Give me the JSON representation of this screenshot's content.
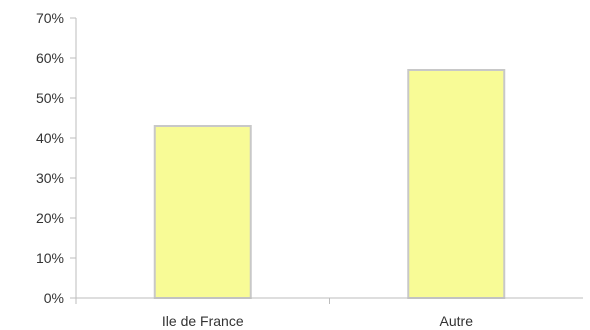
{
  "chart_data": {
    "type": "bar",
    "categories": [
      "Ile de France",
      "Autre"
    ],
    "values": [
      43,
      57
    ],
    "value_unit": "%",
    "ylim": [
      0,
      70
    ],
    "yticks": [
      0,
      10,
      20,
      30,
      40,
      50,
      60,
      70
    ],
    "ytick_labels": [
      "0%",
      "10%",
      "20%",
      "30%",
      "40%",
      "50%",
      "60%",
      "70%"
    ],
    "title": "",
    "xlabel": "",
    "ylabel": "",
    "grid": false,
    "legend": "none",
    "colors": {
      "bar_fill": "#f8fb96",
      "bar_stroke": "#c8c8c8",
      "axis": "#bdbdbd",
      "text": "#333333"
    }
  }
}
